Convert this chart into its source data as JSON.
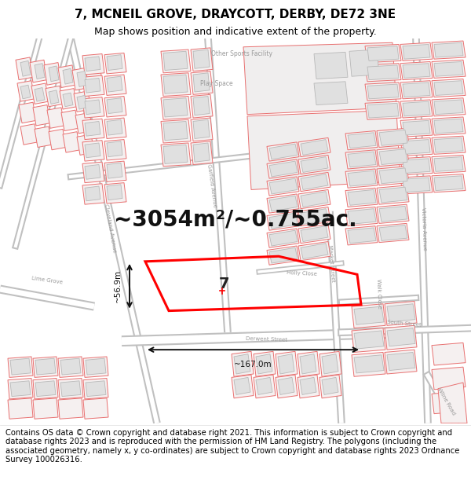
{
  "title": "7, MCNEIL GROVE, DRAYCOTT, DERBY, DE72 3NE",
  "subtitle": "Map shows position and indicative extent of the property.",
  "area_text": "~3054m²/~0.755ac.",
  "width_label": "~167.0m",
  "height_label": "~56.9m",
  "property_number": "7",
  "footer_text": "Contains OS data © Crown copyright and database right 2021. This information is subject to Crown copyright and database rights 2023 and is reproduced with the permission of HM Land Registry. The polygons (including the associated geometry, namely x, y co-ordinates) are subject to Crown copyright and database rights 2023 Ordnance Survey 100026316.",
  "map_bg": "#ffffff",
  "road_outline": "#c8c8c8",
  "parcel_stroke": "#e87070",
  "parcel_fill": "#f5f0f0",
  "building_fill": "#e0e0e0",
  "building_stroke": "#b8b8b8",
  "highlight_color": "#ff0000",
  "dim_color": "#111111",
  "label_color": "#999999",
  "title_fontsize": 11,
  "subtitle_fontsize": 9,
  "area_fontsize": 20,
  "footer_fontsize": 7.2
}
